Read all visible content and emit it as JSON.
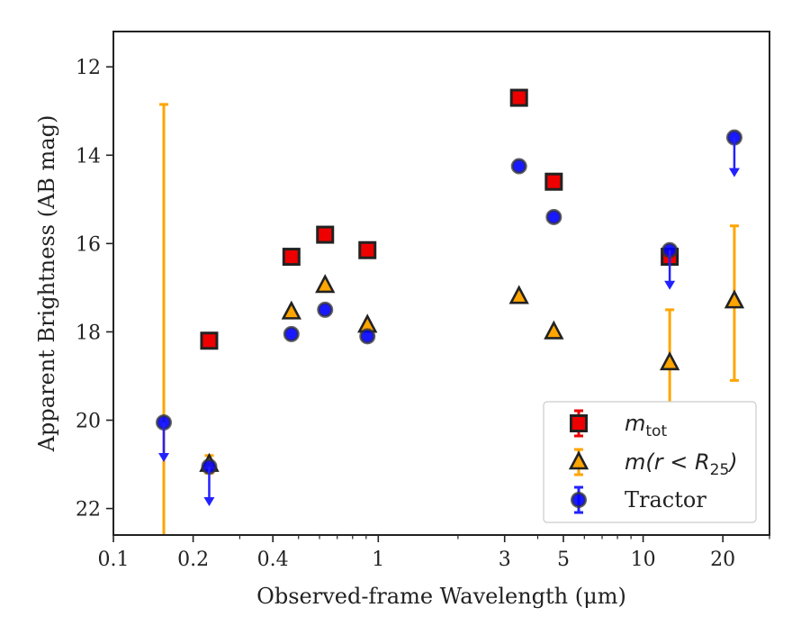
{
  "colors": {
    "mtot": "#ee0000",
    "mr25": "#ffa500",
    "tractor": "#0000ff",
    "edge": "#222222",
    "tractor_arrow": "#2222ff"
  },
  "chart_data": {
    "type": "scatter",
    "xlabel": "Observed-frame Wavelength (μm)",
    "ylabel": "Apparent Brightness (AB mag)",
    "xscale": "log",
    "xlim": [
      0.1,
      30
    ],
    "ylim": [
      22.6,
      11.2
    ],
    "y_inverted": true,
    "x_ticks": [
      {
        "value": 0.1,
        "label": "0.1"
      },
      {
        "value": 0.2,
        "label": "0.2"
      },
      {
        "value": 0.4,
        "label": "0.4"
      },
      {
        "value": 1,
        "label": "1"
      },
      {
        "value": 3,
        "label": "3"
      },
      {
        "value": 5,
        "label": "5"
      },
      {
        "value": 10,
        "label": "10"
      },
      {
        "value": 20,
        "label": "20"
      }
    ],
    "y_ticks": [
      {
        "value": 12,
        "label": "12"
      },
      {
        "value": 14,
        "label": "14"
      },
      {
        "value": 16,
        "label": "16"
      },
      {
        "value": 18,
        "label": "18"
      },
      {
        "value": 20,
        "label": "20"
      },
      {
        "value": 22,
        "label": "22"
      }
    ],
    "grid": false,
    "legend_position": "lower-right",
    "legend": [
      {
        "label_main": "m",
        "label_sub": "tot",
        "label_suffix": ""
      },
      {
        "label_main": "m(r < R",
        "label_sub": "25",
        "label_suffix": ")"
      },
      {
        "label_main": "Tractor",
        "label_sub": "",
        "label_suffix": ""
      }
    ],
    "series": [
      {
        "name": "m_tot",
        "marker": "square",
        "points": [
          {
            "x": 0.23,
            "y": 18.2
          },
          {
            "x": 0.47,
            "y": 16.3
          },
          {
            "x": 0.63,
            "y": 15.8
          },
          {
            "x": 0.91,
            "y": 16.15
          },
          {
            "x": 3.4,
            "y": 12.7
          },
          {
            "x": 4.6,
            "y": 14.6
          },
          {
            "x": 12.6,
            "y": 16.3
          }
        ]
      },
      {
        "name": "m(r<R25)",
        "marker": "triangle",
        "points": [
          {
            "x": 0.23,
            "y": 21.0,
            "err": [
              20.8,
              21.2
            ]
          },
          {
            "x": 0.47,
            "y": 17.55
          },
          {
            "x": 0.63,
            "y": 16.95
          },
          {
            "x": 0.91,
            "y": 17.85
          },
          {
            "x": 3.4,
            "y": 17.2
          },
          {
            "x": 4.6,
            "y": 18.0
          },
          {
            "x": 12.6,
            "y": 18.7,
            "err": [
              17.5,
              20.0
            ]
          },
          {
            "x": 22.1,
            "y": 17.3,
            "err": [
              15.6,
              19.1
            ]
          }
        ]
      },
      {
        "name": "Tractor",
        "marker": "circle",
        "points": [
          {
            "x": 0.155,
            "y": 20.05,
            "upper_limit": true
          },
          {
            "x": 0.23,
            "y": 21.05,
            "upper_limit": true
          },
          {
            "x": 0.47,
            "y": 18.05
          },
          {
            "x": 0.63,
            "y": 17.5
          },
          {
            "x": 0.91,
            "y": 18.1
          },
          {
            "x": 3.4,
            "y": 14.25
          },
          {
            "x": 4.6,
            "y": 15.4
          },
          {
            "x": 12.6,
            "y": 16.15,
            "upper_limit": true
          },
          {
            "x": 22.1,
            "y": 13.6,
            "upper_limit": true
          }
        ]
      }
    ],
    "fuv_errorbar": {
      "x": 0.155,
      "y_top": 12.85,
      "y_bottom": 22.6
    }
  }
}
